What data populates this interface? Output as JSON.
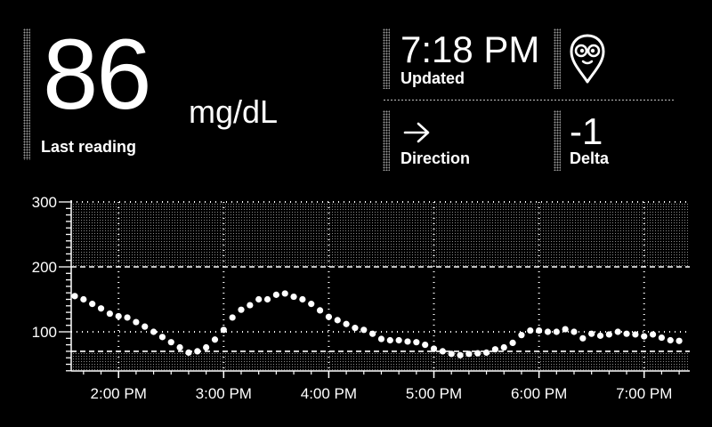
{
  "reading": {
    "value": "86",
    "unit": "mg/dL",
    "label": "Last reading"
  },
  "updated": {
    "time": "7:18 PM",
    "label": "Updated"
  },
  "direction": {
    "arrow": "→",
    "label": "Direction"
  },
  "delta": {
    "value": "-1",
    "label": "Delta"
  },
  "logo": {
    "icon": "alien-map-pin-icon"
  },
  "colors": {
    "background": "#000000",
    "foreground": "#ffffff",
    "band": "#8a8a8a"
  },
  "chart_data": {
    "type": "scatter",
    "title": "",
    "xlabel": "",
    "ylabel": "",
    "y_ticks": [
      "300",
      "200",
      "100"
    ],
    "x_ticks": [
      "2:00 PM",
      "3:00 PM",
      "4:00 PM",
      "5:00 PM",
      "6:00 PM",
      "7:00 PM"
    ],
    "xlim": [
      "1:35 PM",
      "7:23 PM"
    ],
    "ylim": [
      40,
      300
    ],
    "high_threshold": 200,
    "low_threshold": 70,
    "grid": true,
    "points": [
      [
        "1:35 PM",
        155
      ],
      [
        "1:40 PM",
        150
      ],
      [
        "1:45 PM",
        143
      ],
      [
        "1:50 PM",
        136
      ],
      [
        "1:55 PM",
        128
      ],
      [
        "2:00 PM",
        124
      ],
      [
        "2:05 PM",
        122
      ],
      [
        "2:10 PM",
        115
      ],
      [
        "2:15 PM",
        108
      ],
      [
        "2:20 PM",
        100
      ],
      [
        "2:25 PM",
        92
      ],
      [
        "2:30 PM",
        84
      ],
      [
        "2:35 PM",
        76
      ],
      [
        "2:40 PM",
        68
      ],
      [
        "2:45 PM",
        70
      ],
      [
        "2:50 PM",
        76
      ],
      [
        "2:55 PM",
        88
      ],
      [
        "3:00 PM",
        103
      ],
      [
        "3:05 PM",
        122
      ],
      [
        "3:10 PM",
        134
      ],
      [
        "3:15 PM",
        141
      ],
      [
        "3:20 PM",
        150
      ],
      [
        "3:25 PM",
        150
      ],
      [
        "3:30 PM",
        157
      ],
      [
        "3:35 PM",
        159
      ],
      [
        "3:40 PM",
        154
      ],
      [
        "3:45 PM",
        150
      ],
      [
        "3:50 PM",
        143
      ],
      [
        "3:55 PM",
        133
      ],
      [
        "4:00 PM",
        123
      ],
      [
        "4:05 PM",
        118
      ],
      [
        "4:10 PM",
        112
      ],
      [
        "4:15 PM",
        106
      ],
      [
        "4:20 PM",
        103
      ],
      [
        "4:25 PM",
        97
      ],
      [
        "4:30 PM",
        89
      ],
      [
        "4:35 PM",
        87
      ],
      [
        "4:40 PM",
        87
      ],
      [
        "4:45 PM",
        85
      ],
      [
        "4:50 PM",
        84
      ],
      [
        "4:55 PM",
        80
      ],
      [
        "5:00 PM",
        74
      ],
      [
        "5:05 PM",
        70
      ],
      [
        "5:10 PM",
        66
      ],
      [
        "5:15 PM",
        64
      ],
      [
        "5:20 PM",
        66
      ],
      [
        "5:25 PM",
        67
      ],
      [
        "5:30 PM",
        68
      ],
      [
        "5:35 PM",
        73
      ],
      [
        "5:40 PM",
        76
      ],
      [
        "5:45 PM",
        83
      ],
      [
        "5:50 PM",
        95
      ],
      [
        "5:55 PM",
        102
      ],
      [
        "6:00 PM",
        102
      ],
      [
        "6:05 PM",
        100
      ],
      [
        "6:10 PM",
        100
      ],
      [
        "6:15 PM",
        104
      ],
      [
        "6:20 PM",
        100
      ],
      [
        "6:25 PM",
        90
      ],
      [
        "6:30 PM",
        97
      ],
      [
        "6:35 PM",
        94
      ],
      [
        "6:40 PM",
        96
      ],
      [
        "6:45 PM",
        100
      ],
      [
        "6:50 PM",
        97
      ],
      [
        "6:55 PM",
        96
      ],
      [
        "7:00 PM",
        93
      ],
      [
        "7:05 PM",
        96
      ],
      [
        "7:10 PM",
        91
      ],
      [
        "7:15 PM",
        87
      ],
      [
        "7:20 PM",
        86
      ]
    ]
  }
}
